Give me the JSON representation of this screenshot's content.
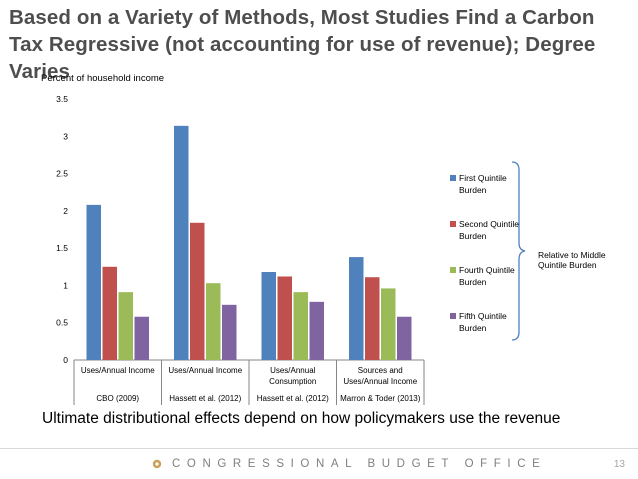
{
  "slide": {
    "title": "Based on a Variety of Methods, Most Studies Find a Carbon Tax Regressive (not accounting for use of revenue); Degree Varies",
    "caption": "Ultimate distributional effects depend on how policymakers use the revenue",
    "footer": "CONGRESSIONAL BUDGET OFFICE",
    "page_number": "13",
    "relative_label": "Relative to Middle Quintile Burden"
  },
  "colors": {
    "first": "#4f81bd",
    "second": "#c0504d",
    "fourth": "#9bbb59",
    "fifth": "#8064a2",
    "bracket": "#4f81bd"
  },
  "chart_data": {
    "type": "bar",
    "title": "",
    "ylabel": "Percent of household income",
    "xlabel": "",
    "ylim": [
      0,
      3.5
    ],
    "yticks": [
      "0",
      "0.5",
      "1",
      "1.5",
      "2",
      "2.5",
      "3",
      "3.5"
    ],
    "ytick_values": [
      0,
      0.5,
      1,
      1.5,
      2,
      2.5,
      3,
      3.5
    ],
    "categories": [
      {
        "measure": [
          "Uses/Annual Income"
        ],
        "study": "CBO (2009)"
      },
      {
        "measure": [
          "Uses/Annual Income"
        ],
        "study": "Hassett et al. (2012)"
      },
      {
        "measure": [
          "Uses/Annual",
          "Consumption"
        ],
        "study": "Hassett et al. (2012)"
      },
      {
        "measure": [
          "Sources and",
          "Uses/Annual Income"
        ],
        "study": "Marron & Toder (2013)"
      }
    ],
    "series": [
      {
        "name": "First Quintile Burden",
        "key": "first",
        "values": [
          2.08,
          3.14,
          1.18,
          1.38
        ]
      },
      {
        "name": "Second Quintile Burden",
        "key": "second",
        "values": [
          1.25,
          1.84,
          1.12,
          1.11
        ]
      },
      {
        "name": "Fourth Quintile Burden",
        "key": "fourth",
        "values": [
          0.91,
          1.03,
          0.91,
          0.96
        ]
      },
      {
        "name": "Fifth Quintile Burden",
        "key": "fifth",
        "values": [
          0.58,
          0.74,
          0.78,
          0.58
        ]
      }
    ],
    "legend": [
      {
        "line1": "First Quintile",
        "line2": "Burden",
        "key": "first"
      },
      {
        "line1": "Second Quintile",
        "line2": "Burden",
        "key": "second"
      },
      {
        "line1": "Fourth Quintile",
        "line2": "Burden",
        "key": "fourth"
      },
      {
        "line1": "Fifth Quintile",
        "line2": "Burden",
        "key": "fifth"
      }
    ]
  }
}
